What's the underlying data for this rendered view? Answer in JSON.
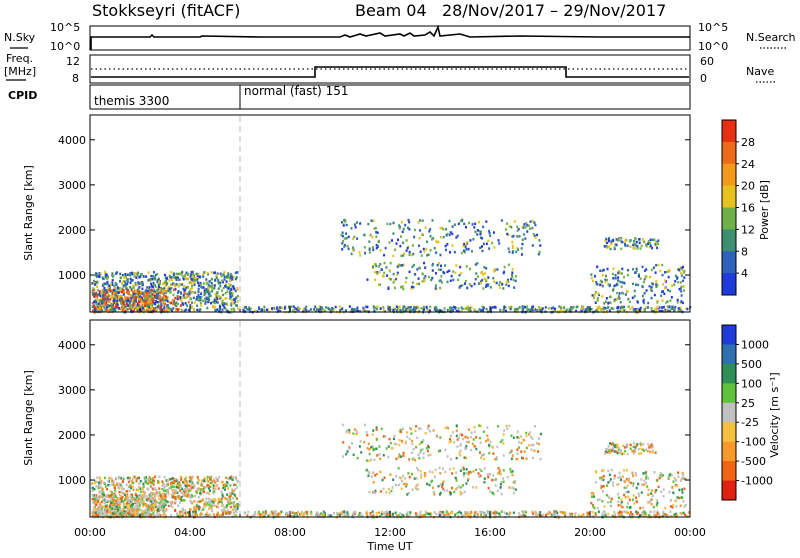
{
  "header": {
    "station": "Stokkseyri (fitACF)",
    "beam": "Beam 04",
    "dates": "28/Nov/2017 – 29/Nov/2017"
  },
  "top_panels": {
    "nsky_label": "N.Sky",
    "nsky_ticks": [
      "10^5",
      "10^0"
    ],
    "nsearch_label": "N.Search",
    "nsearch_ticks": [
      "10^5",
      "10^0"
    ],
    "freq_label_1": "Freq.",
    "freq_label_2": "[MHz]",
    "freq_ticks": [
      "12",
      "8"
    ],
    "nave_label": "Nave",
    "nave_ticks": [
      "60",
      "0"
    ],
    "cpid_label": "CPID",
    "cpid_segments": [
      {
        "label": "themis 3300",
        "start_hour": 0
      },
      {
        "label": "normal (fast) 151",
        "start_hour": 6
      }
    ]
  },
  "chart_data": [
    {
      "type": "heatmap",
      "title": "",
      "xlabel": "",
      "ylabel": "Slant Range [km]",
      "x_range_hours": [
        0,
        24
      ],
      "ylim": [
        180,
        4550
      ],
      "y_ticks": [
        "1000",
        "2000",
        "3000",
        "4000"
      ],
      "colorbar_label": "Power [dB]",
      "colorbar_ticks": [
        "4",
        "8",
        "12",
        "16",
        "20",
        "24",
        "28"
      ],
      "colorbar_colors": [
        "#1f3bd9",
        "#2e62b8",
        "#3e8f72",
        "#6fb04a",
        "#e7c21e",
        "#f39a1b",
        "#ec6a1a",
        "#e63012"
      ],
      "vertical_marker_hour": 6
    },
    {
      "type": "heatmap",
      "title": "",
      "xlabel": "Time UT",
      "ylabel": "Slant Range [km]",
      "x_range_hours": [
        0,
        24
      ],
      "x_ticks": [
        "00:00",
        "04:00",
        "08:00",
        "12:00",
        "16:00",
        "20:00",
        "00:00"
      ],
      "ylim": [
        180,
        4550
      ],
      "y_ticks": [
        "1000",
        "2000",
        "3000",
        "4000"
      ],
      "colorbar_label": "Velocity [m s⁻¹]",
      "colorbar_ticks": [
        "1000",
        "500",
        "100",
        "25",
        "-25",
        "-100",
        "-500",
        "-1000"
      ],
      "colorbar_colors": [
        "#1f3bd9",
        "#2e6fb0",
        "#2e8f57",
        "#5fc23a",
        "#c0c0c0",
        "#f5c040",
        "#f59a2a",
        "#f06414",
        "#e02010"
      ],
      "vertical_marker_hour": 6
    }
  ],
  "time_axis": {
    "label": "Time UT",
    "ticks": [
      "00:00",
      "04:00",
      "08:00",
      "12:00",
      "16:00",
      "20:00",
      "00:00"
    ]
  }
}
